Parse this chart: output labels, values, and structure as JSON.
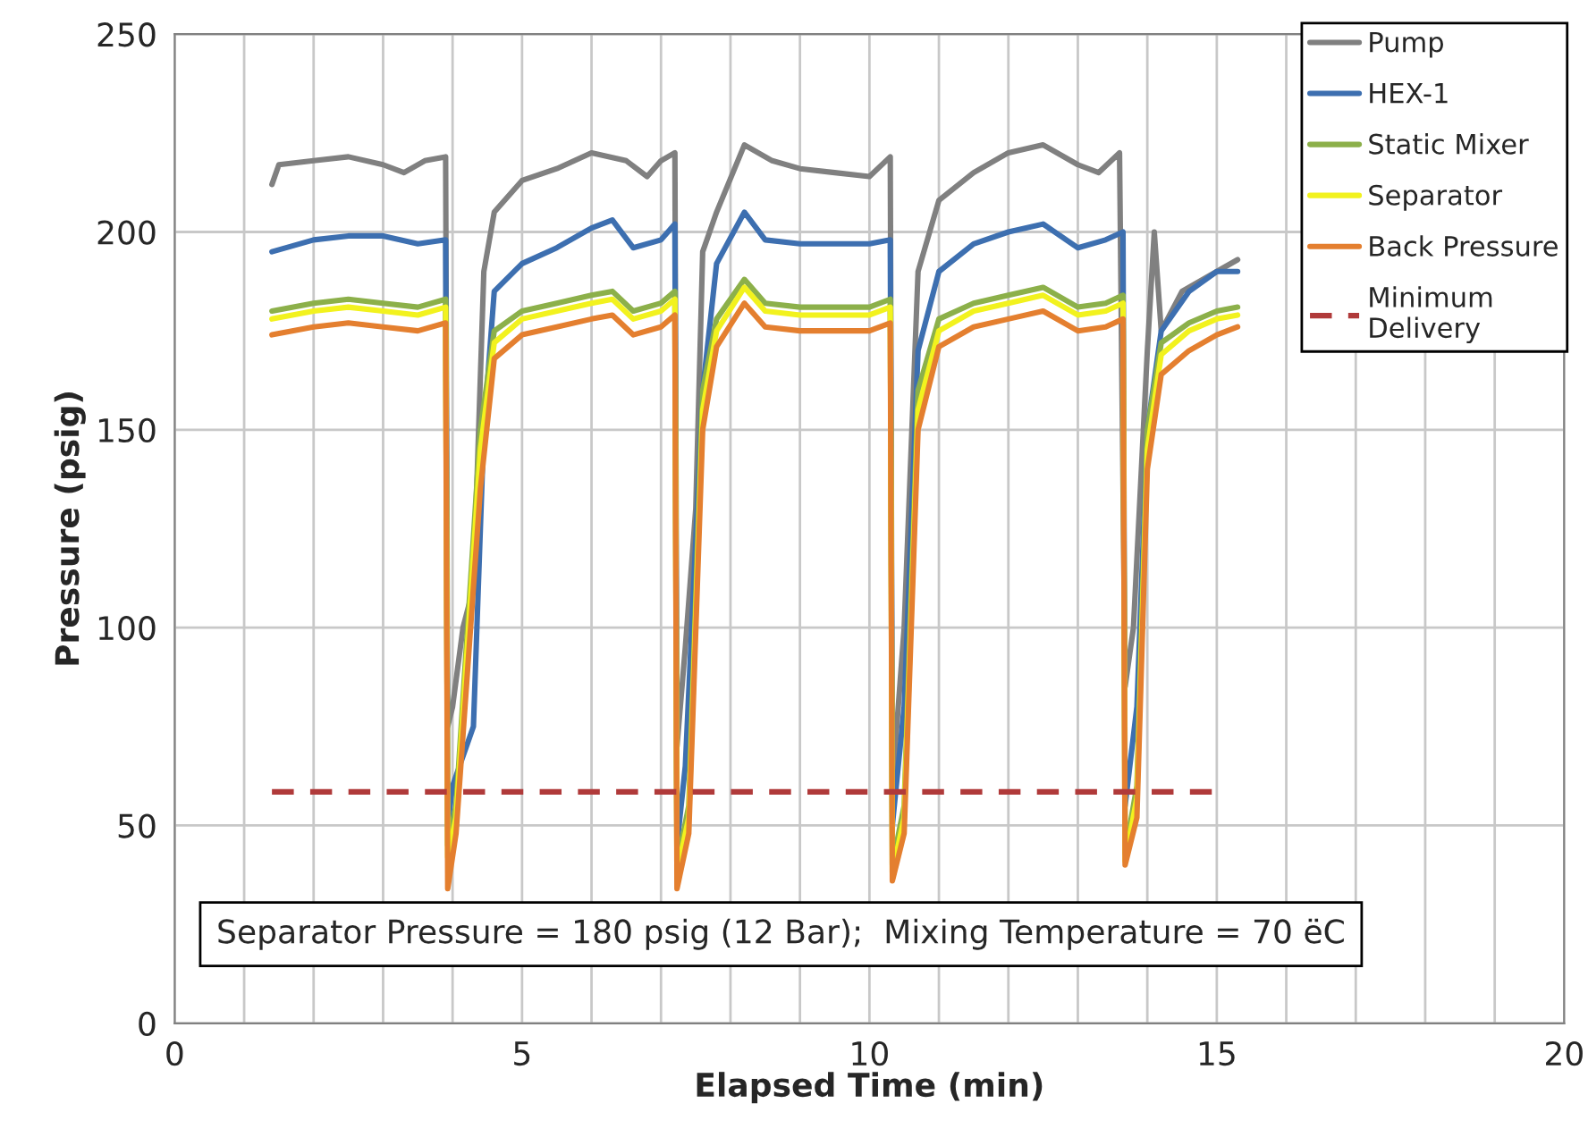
{
  "chart_data": {
    "type": "line",
    "xlabel": "Elapsed Time (min)",
    "ylabel": "Pressure (psig)",
    "xlim": [
      0,
      20
    ],
    "ylim": [
      0,
      250
    ],
    "xticks": [
      0,
      {
        "value": 1,
        "label": null
      },
      {
        "value": 2,
        "label": null
      },
      {
        "value": 3,
        "label": null
      },
      {
        "value": 4,
        "label": null
      },
      5,
      {
        "value": 6,
        "label": null
      },
      {
        "value": 7,
        "label": null
      },
      {
        "value": 8,
        "label": null
      },
      {
        "value": 9,
        "label": null
      },
      10,
      {
        "value": 11,
        "label": null
      },
      {
        "value": 12,
        "label": null
      },
      {
        "value": 13,
        "label": null
      },
      {
        "value": 14,
        "label": null
      },
      15,
      {
        "value": 16,
        "label": null
      },
      {
        "value": 17,
        "label": null
      },
      {
        "value": 18,
        "label": null
      },
      {
        "value": 19,
        "label": null
      },
      20
    ],
    "yticks": [
      0,
      50,
      100,
      150,
      200,
      250
    ],
    "grid": true,
    "legend": "top right",
    "marker": "none",
    "annotations": [
      "Separator Pressure = 180 psig (12 Bar);  Mixing Temperature = 70 ëC"
    ],
    "series": [
      {
        "name": "Pump",
        "color": "#808080",
        "x": [
          1.4,
          1.5,
          2.0,
          2.5,
          3.0,
          3.3,
          3.6,
          3.9,
          3.93,
          4.0,
          4.15,
          4.3,
          4.45,
          4.6,
          5.0,
          5.5,
          6.0,
          6.5,
          6.8,
          7.0,
          7.2,
          7.23,
          7.35,
          7.5,
          7.6,
          7.8,
          8.2,
          8.6,
          9.0,
          9.5,
          10.0,
          10.3,
          10.33,
          10.5,
          10.7,
          11.0,
          11.5,
          12.0,
          12.5,
          13.0,
          13.3,
          13.6,
          13.68,
          13.8,
          14.0,
          14.1,
          14.2,
          14.5,
          15.0,
          15.3
        ],
        "values": [
          212,
          217,
          218,
          219,
          217,
          215,
          218,
          219,
          75,
          80,
          100,
          110,
          190,
          205,
          213,
          216,
          220,
          218,
          214,
          218,
          220,
          70,
          95,
          130,
          195,
          205,
          222,
          218,
          216,
          215,
          214,
          219,
          60,
          100,
          190,
          208,
          215,
          220,
          222,
          217,
          215,
          220,
          85,
          100,
          170,
          200,
          175,
          185,
          190,
          193
        ]
      },
      {
        "name": "HEX-1",
        "color": "#3d6fb0",
        "x": [
          1.4,
          2.0,
          2.5,
          3.0,
          3.5,
          3.9,
          3.93,
          4.0,
          4.3,
          4.45,
          4.6,
          5.0,
          5.5,
          6.0,
          6.3,
          6.6,
          7.0,
          7.2,
          7.23,
          7.35,
          7.6,
          7.8,
          8.2,
          8.5,
          9.0,
          9.5,
          10.0,
          10.3,
          10.33,
          10.5,
          10.7,
          11.0,
          11.5,
          12.0,
          12.5,
          13.0,
          13.4,
          13.65,
          13.68,
          13.85,
          14.0,
          14.2,
          14.6,
          15.0,
          15.3
        ],
        "values": [
          195,
          198,
          199,
          199,
          197,
          198,
          50,
          60,
          75,
          150,
          185,
          192,
          196,
          201,
          203,
          196,
          198,
          202,
          45,
          65,
          160,
          192,
          205,
          198,
          197,
          197,
          197,
          198,
          50,
          80,
          170,
          190,
          197,
          200,
          202,
          196,
          198,
          200,
          55,
          80,
          150,
          175,
          185,
          190,
          190
        ]
      },
      {
        "name": "Static Mixer",
        "color": "#8cb04a",
        "x": [
          1.4,
          2.0,
          2.5,
          3.0,
          3.5,
          3.9,
          3.93,
          4.05,
          4.4,
          4.6,
          5.0,
          5.5,
          6.0,
          6.3,
          6.6,
          7.0,
          7.2,
          7.23,
          7.4,
          7.6,
          7.8,
          8.2,
          8.5,
          9.0,
          9.5,
          10.0,
          10.3,
          10.33,
          10.5,
          10.7,
          11.0,
          11.5,
          12.0,
          12.5,
          13.0,
          13.4,
          13.65,
          13.68,
          13.85,
          14.0,
          14.2,
          14.6,
          15.0,
          15.3
        ],
        "values": [
          180,
          182,
          183,
          182,
          181,
          183,
          45,
          55,
          150,
          175,
          180,
          182,
          184,
          185,
          180,
          182,
          185,
          40,
          55,
          160,
          178,
          188,
          182,
          181,
          181,
          181,
          183,
          40,
          55,
          160,
          178,
          182,
          184,
          186,
          181,
          182,
          184,
          43,
          60,
          150,
          172,
          177,
          180,
          181
        ]
      },
      {
        "name": "Separator",
        "color": "#f2f21e",
        "x": [
          1.4,
          2.0,
          2.5,
          3.0,
          3.5,
          3.9,
          3.93,
          4.05,
          4.4,
          4.6,
          5.0,
          5.5,
          6.0,
          6.3,
          6.6,
          7.0,
          7.2,
          7.23,
          7.4,
          7.6,
          7.8,
          8.2,
          8.5,
          9.0,
          9.5,
          10.0,
          10.3,
          10.33,
          10.5,
          10.7,
          11.0,
          11.5,
          12.0,
          12.5,
          13.0,
          13.4,
          13.65,
          13.68,
          13.85,
          14.0,
          14.2,
          14.6,
          15.0,
          15.3
        ],
        "values": [
          178,
          180,
          181,
          180,
          179,
          181,
          42,
          52,
          145,
          172,
          178,
          180,
          182,
          183,
          178,
          180,
          183,
          38,
          52,
          155,
          175,
          186,
          180,
          179,
          179,
          179,
          181,
          38,
          52,
          155,
          175,
          180,
          182,
          184,
          179,
          180,
          182,
          41,
          57,
          145,
          169,
          175,
          178,
          179
        ]
      },
      {
        "name": "Back Pressure",
        "color": "#e47f2f",
        "x": [
          1.4,
          2.0,
          2.5,
          3.0,
          3.5,
          3.9,
          3.93,
          4.05,
          4.4,
          4.6,
          5.0,
          5.5,
          6.0,
          6.3,
          6.6,
          7.0,
          7.2,
          7.23,
          7.4,
          7.6,
          7.8,
          8.2,
          8.5,
          9.0,
          9.5,
          10.0,
          10.3,
          10.33,
          10.5,
          10.7,
          11.0,
          11.5,
          12.0,
          12.5,
          13.0,
          13.4,
          13.65,
          13.68,
          13.85,
          14.0,
          14.2,
          14.6,
          15.0,
          15.3
        ],
        "values": [
          174,
          176,
          177,
          176,
          175,
          177,
          34,
          48,
          135,
          168,
          174,
          176,
          178,
          179,
          174,
          176,
          179,
          34,
          48,
          150,
          171,
          182,
          176,
          175,
          175,
          175,
          177,
          36,
          48,
          150,
          171,
          176,
          178,
          180,
          175,
          176,
          178,
          40,
          52,
          140,
          164,
          170,
          174,
          176
        ]
      },
      {
        "name": "Minimum\nDelivery",
        "color": "#b03a3a",
        "line_style": "dashed",
        "x": [
          1.4,
          15.0
        ],
        "values": [
          58.5,
          58.5
        ]
      }
    ]
  }
}
